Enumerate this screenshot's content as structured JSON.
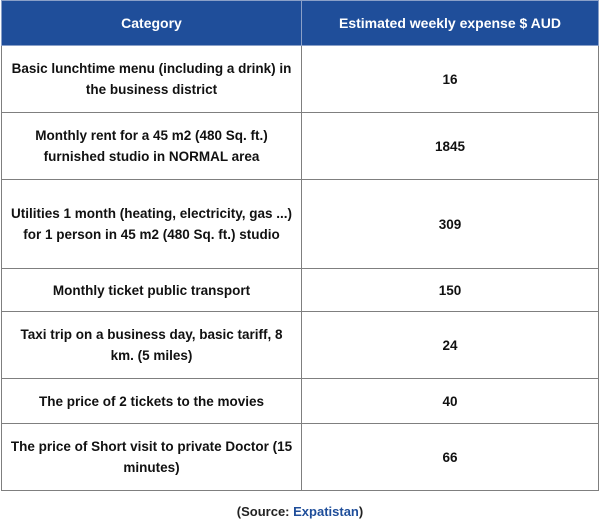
{
  "chart_data": {
    "type": "table",
    "columns": [
      "Category",
      "Estimated weekly expense $ AUD"
    ],
    "rows": [
      {
        "category": "Basic lunchtime menu (including a drink) in the business district",
        "value": "16"
      },
      {
        "category": "Monthly rent for a 45 m2 (480 Sq. ft.) furnished studio in NORMAL area",
        "value": "1845"
      },
      {
        "category": "Utilities 1 month (heating, electricity, gas ...) for 1 person in 45 m2 (480 Sq. ft.) studio",
        "value": "309"
      },
      {
        "category": "Monthly ticket public transport",
        "value": "150"
      },
      {
        "category": "Taxi trip on a business day, basic tariff, 8 km. (5 miles)",
        "value": "24"
      },
      {
        "category": "The price of 2 tickets to the movies",
        "value": "40"
      },
      {
        "category": "The price of Short visit to private Doctor (15 minutes)",
        "value": "66"
      }
    ]
  },
  "source": {
    "prefix": "(Source: ",
    "name": "Expatistan",
    "suffix": ")"
  },
  "colors": {
    "header_bg": "#1f4e9a",
    "header_text": "#ffffff",
    "source_link": "#1f4e9a"
  }
}
